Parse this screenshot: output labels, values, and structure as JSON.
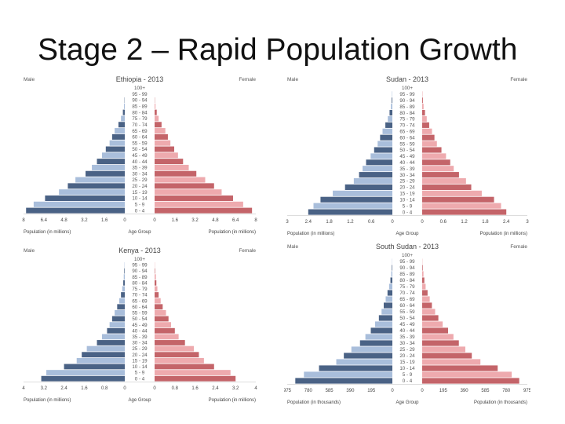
{
  "slide": {
    "title": "Stage 2 – Rapid Population Growth"
  },
  "colors": {
    "male_dark": "#4a6285",
    "male_light": "#a9bedb",
    "female_dark": "#c46469",
    "female_light": "#eeaaae"
  },
  "age_groups": [
    "100+",
    "95 - 99",
    "90 - 94",
    "85 - 89",
    "80 - 84",
    "75 - 79",
    "70 - 74",
    "65 - 69",
    "60 - 64",
    "55 - 59",
    "50 - 54",
    "45 - 49",
    "40 - 44",
    "35 - 39",
    "30 - 34",
    "25 - 29",
    "20 - 24",
    "15 - 19",
    "10 - 14",
    "5 - 9",
    "0 - 4"
  ],
  "chart_data": [
    {
      "type": "population_pyramid",
      "title": "Ethiopia - 2013",
      "left_label": "Male",
      "right_label": "Female",
      "xlabel_left": "Population (in millions)",
      "xlabel_center": "Age Group",
      "xlabel_right": "Population (in millions)",
      "xlim": [
        0,
        8
      ],
      "ticks_left": [
        "8",
        "6.4",
        "4.8",
        "3.2",
        "1.6",
        "0"
      ],
      "ticks_right": [
        "0",
        "1.6",
        "3.2",
        "4.8",
        "6.4",
        "8"
      ],
      "male": [
        0,
        0,
        0.02,
        0.06,
        0.15,
        0.3,
        0.5,
        0.8,
        1.0,
        1.2,
        1.5,
        1.8,
        2.2,
        2.6,
        3.1,
        3.9,
        4.5,
        5.2,
        6.3,
        7.2,
        7.8
      ],
      "female": [
        0,
        0,
        0.02,
        0.07,
        0.17,
        0.32,
        0.55,
        0.85,
        1.05,
        1.25,
        1.55,
        1.85,
        2.25,
        2.7,
        3.3,
        4.0,
        4.7,
        5.3,
        6.2,
        7.0,
        7.7
      ]
    },
    {
      "type": "population_pyramid",
      "title": "Sudan - 2013",
      "left_label": "Male",
      "right_label": "Female",
      "xlabel_left": "Population (in millions)",
      "xlabel_center": "Age Group",
      "xlabel_right": "Population (in millions)",
      "xlim": [
        0,
        3
      ],
      "ticks_left": [
        "3",
        "2.4",
        "1.8",
        "1.2",
        "0.6",
        "0"
      ],
      "ticks_right": [
        "0",
        "0.6",
        "1.2",
        "1.8",
        "2.4",
        "3"
      ],
      "male": [
        0,
        0.01,
        0.02,
        0.04,
        0.08,
        0.13,
        0.2,
        0.28,
        0.35,
        0.42,
        0.52,
        0.62,
        0.75,
        0.85,
        0.95,
        1.1,
        1.35,
        1.7,
        2.05,
        2.25,
        2.4
      ],
      "female": [
        0,
        0.01,
        0.02,
        0.04,
        0.08,
        0.13,
        0.2,
        0.28,
        0.35,
        0.42,
        0.55,
        0.68,
        0.8,
        0.9,
        1.05,
        1.25,
        1.4,
        1.7,
        2.05,
        2.25,
        2.4
      ]
    },
    {
      "type": "population_pyramid",
      "title": "Kenya - 2013",
      "left_label": "Male",
      "right_label": "Female",
      "xlabel_left": "Population (in millions)",
      "xlabel_center": "Age Group",
      "xlabel_right": "Population (in millions)",
      "xlim": [
        0,
        4
      ],
      "ticks_left": [
        "4",
        "3.2",
        "2.4",
        "1.6",
        "0.8",
        "0"
      ],
      "ticks_right": [
        "0",
        "0.8",
        "1.6",
        "2.4",
        "3.2",
        "4"
      ],
      "male": [
        0,
        0.01,
        0.02,
        0.04,
        0.06,
        0.1,
        0.15,
        0.22,
        0.3,
        0.4,
        0.5,
        0.6,
        0.7,
        0.9,
        1.1,
        1.5,
        1.7,
        1.9,
        2.4,
        3.1,
        3.3
      ],
      "female": [
        0,
        0.01,
        0.02,
        0.05,
        0.07,
        0.11,
        0.16,
        0.24,
        0.32,
        0.45,
        0.55,
        0.65,
        0.8,
        0.95,
        1.2,
        1.55,
        1.75,
        1.95,
        2.35,
        3.0,
        3.2
      ]
    },
    {
      "type": "population_pyramid",
      "title": "South Sudan - 2013",
      "left_label": "Male",
      "right_label": "Female",
      "xlabel_left": "Population (in thousands)",
      "xlabel_center": "Age Group",
      "xlabel_right": "Population (in thousands)",
      "xlim": [
        0,
        975
      ],
      "ticks_left": [
        "975",
        "780",
        "585",
        "390",
        "195",
        "0"
      ],
      "ticks_right": [
        "0",
        "195",
        "390",
        "585",
        "780",
        "975"
      ],
      "male": [
        0,
        2,
        5,
        10,
        18,
        30,
        45,
        62,
        80,
        100,
        125,
        160,
        200,
        250,
        300,
        380,
        450,
        520,
        680,
        820,
        900
      ],
      "female": [
        0,
        2,
        5,
        12,
        20,
        32,
        50,
        70,
        90,
        120,
        150,
        190,
        240,
        290,
        340,
        400,
        460,
        540,
        700,
        830,
        900
      ]
    }
  ]
}
